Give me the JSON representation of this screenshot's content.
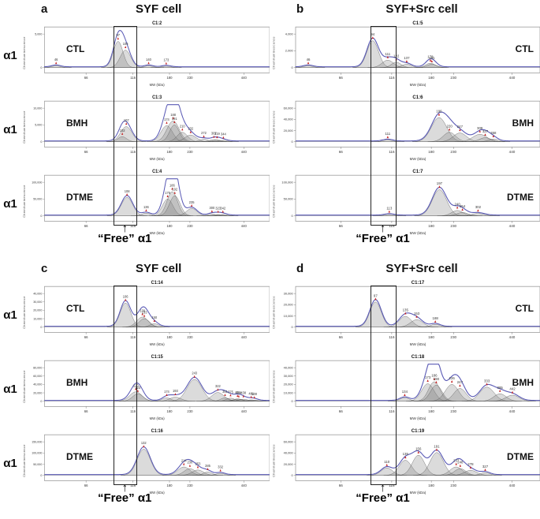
{
  "chart_data": {
    "type": "area",
    "x_axis": {
      "label": "MW (kDa)",
      "ticks": [
        66,
        116,
        180,
        230,
        440
      ],
      "scale": "log",
      "range": [
        40,
        600
      ]
    },
    "y_axis": {
      "label": "Chemiluminescence"
    },
    "free_annotation": "“Free” α1",
    "highlight_box_kda": [
      92,
      120
    ],
    "colors": {
      "trace": "#5a5ab5",
      "peak_fill": "rgba(125,125,125,0.28)",
      "peak_stroke": "#555555",
      "marker": "#c42222",
      "frame": "#9a9a9a",
      "box": "#222222"
    },
    "panels": [
      {
        "letter": "a",
        "cell": "SYF cell",
        "antibody": "α1",
        "side": "left",
        "rows": [
          {
            "condition": "CTL",
            "run": "C1:2",
            "y_ticks": [
              0,
              5000
            ],
            "peaks": [
              {
                "mw": 46,
                "rel": 0.05
              },
              {
                "mw": 97,
                "rel": 0.78,
                "w": 1.1
              },
              {
                "mw": 106,
                "rel": 0.52,
                "w": 1.2
              },
              {
                "mw": 140,
                "rel": 0.05
              },
              {
                "mw": 173,
                "rel": 0.04
              }
            ]
          },
          {
            "condition": "BMH",
            "run": "C1:3",
            "y_ticks": [
              0,
              5000,
              10000
            ],
            "peaks": [
              {
                "mw": 102,
                "rel": 0.15
              },
              {
                "mw": 107,
                "rel": 0.45,
                "w": 1.3
              },
              {
                "mw": 174,
                "rel": 0.48,
                "w": 1.3
              },
              {
                "mw": 188,
                "rel": 0.62,
                "w": 1.4
              },
              {
                "mw": 191,
                "rel": 0.5,
                "w": 1.1
              },
              {
                "mw": 210,
                "rel": 0.28,
                "w": 1.2
              },
              {
                "mw": 232,
                "rel": 0.2,
                "w": 1.3
              },
              {
                "mw": 272,
                "rel": 0.07
              },
              {
                "mw": 307,
                "rel": 0.06
              },
              {
                "mw": 319,
                "rel": 0.05
              },
              {
                "mw": 344,
                "rel": 0.04
              }
            ]
          },
          {
            "condition": "DTME",
            "run": "C1:4",
            "y_ticks": [
              0,
              50000,
              100000
            ],
            "peaks": [
              {
                "mw": 108,
                "rel": 0.55,
                "w": 1.3
              },
              {
                "mw": 136,
                "rel": 0.08
              },
              {
                "mw": 176,
                "rel": 0.5,
                "w": 1.2
              },
              {
                "mw": 186,
                "rel": 0.72,
                "w": 1.2
              },
              {
                "mw": 192,
                "rel": 0.6,
                "w": 1.2
              },
              {
                "mw": 235,
                "rel": 0.22,
                "w": 1.2
              },
              {
                "mw": 300,
                "rel": 0.05
              },
              {
                "mw": 323,
                "rel": 0.04
              },
              {
                "mw": 342,
                "rel": 0.04
              }
            ]
          }
        ]
      },
      {
        "letter": "b",
        "cell": "SYF+Src cell",
        "antibody": "α1",
        "side": "right",
        "rows": [
          {
            "condition": "CTL",
            "run": "C1:5",
            "y_ticks": [
              0,
              2000,
              4000
            ],
            "peaks": [
              {
                "mw": 46,
                "rel": 0.05
              },
              {
                "mw": 94,
                "rel": 0.8,
                "w": 1.2
              },
              {
                "mw": 111,
                "rel": 0.22,
                "w": 1.2
              },
              {
                "mw": 122,
                "rel": 0.16
              },
              {
                "mw": 137,
                "rel": 0.1
              },
              {
                "mw": 178,
                "rel": 0.13
              },
              {
                "mw": 181,
                "rel": 0.1
              }
            ]
          },
          {
            "condition": "BMH",
            "run": "C1:6",
            "y_ticks": [
              0,
              20000,
              40000,
              60000
            ],
            "peaks": [
              {
                "mw": 111,
                "rel": 0.05
              },
              {
                "mw": 196,
                "rel": 0.72,
                "w": 1.6
              },
              {
                "mw": 220,
                "rel": 0.28,
                "w": 1.3
              },
              {
                "mw": 247,
                "rel": 0.26,
                "w": 1.4
              },
              {
                "mw": 308,
                "rel": 0.22,
                "w": 1.5
              },
              {
                "mw": 327,
                "rel": 0.12,
                "w": 1.2
              },
              {
                "mw": 358,
                "rel": 0.08
              }
            ]
          },
          {
            "condition": "DTME",
            "run": "C1:7",
            "y_ticks": [
              0,
              50000,
              100000
            ],
            "peaks": [
              {
                "mw": 113,
                "rel": 0.04
              },
              {
                "mw": 197,
                "rel": 0.78,
                "w": 1.5
              },
              {
                "mw": 240,
                "rel": 0.16,
                "w": 1.2
              },
              {
                "mw": 254,
                "rel": 0.1,
                "w": 1.2
              },
              {
                "mw": 302,
                "rel": 0.07,
                "w": 1.3
              }
            ]
          }
        ]
      },
      {
        "letter": "c",
        "cell": "SYF cell",
        "antibody": "α1",
        "side": "left",
        "rows": [
          {
            "condition": "CTL",
            "run": "C1:14",
            "y_ticks": [
              0,
              10000,
              20000,
              30000,
              40000
            ],
            "peaks": [
              {
                "mw": 106,
                "rel": 0.72,
                "w": 1.2
              },
              {
                "mw": 130,
                "rel": 0.3,
                "w": 1.3
              },
              {
                "mw": 133,
                "rel": 0.25,
                "w": 1.2
              },
              {
                "mw": 150,
                "rel": 0.1
              }
            ]
          },
          {
            "condition": "BMH",
            "run": "C1:15",
            "y_ticks": [
              0,
              20000,
              40000,
              60000,
              80000
            ],
            "peaks": [
              {
                "mw": 120,
                "rel": 0.28,
                "w": 1.4
              },
              {
                "mw": 123,
                "rel": 0.22,
                "w": 1.2
              },
              {
                "mw": 174,
                "rel": 0.1
              },
              {
                "mw": 193,
                "rel": 0.12,
                "w": 1.3
              },
              {
                "mw": 243,
                "rel": 0.65,
                "w": 1.7
              },
              {
                "mw": 322,
                "rel": 0.26,
                "w": 1.4
              },
              {
                "mw": 351,
                "rel": 0.1
              },
              {
                "mw": 375,
                "rel": 0.09
              },
              {
                "mw": 408,
                "rel": 0.07
              },
              {
                "mw": 414,
                "rel": 0.06
              },
              {
                "mw": 438,
                "rel": 0.06
              },
              {
                "mw": 481,
                "rel": 0.04
              },
              {
                "mw": 500,
                "rel": 0.03
              }
            ]
          },
          {
            "condition": "DTME",
            "run": "C1:16",
            "y_ticks": [
              0,
              50000,
              100000,
              150000
            ],
            "peaks": [
              {
                "mw": 132,
                "rel": 0.78,
                "w": 1.5
              },
              {
                "mw": 214,
                "rel": 0.25,
                "w": 1.4
              },
              {
                "mw": 230,
                "rel": 0.2,
                "w": 1.3
              },
              {
                "mw": 253,
                "rel": 0.16,
                "w": 1.3
              },
              {
                "mw": 285,
                "rel": 0.1
              },
              {
                "mw": 332,
                "rel": 0.06
              }
            ]
          }
        ]
      },
      {
        "letter": "d",
        "cell": "SYF+Src cell",
        "antibody": "α1",
        "side": "right",
        "rows": [
          {
            "condition": "CTL",
            "run": "C1:17",
            "y_ticks": [
              0,
              10000,
              20000,
              30000
            ],
            "peaks": [
              {
                "mw": 97,
                "rel": 0.75,
                "w": 1.2
              },
              {
                "mw": 135,
                "rel": 0.32,
                "w": 1.3
              },
              {
                "mw": 153,
                "rel": 0.22,
                "w": 1.3
              },
              {
                "mw": 188,
                "rel": 0.08
              }
            ]
          },
          {
            "condition": "BMH",
            "run": "C1:18",
            "y_ticks": [
              0,
              10000,
              20000,
              30000,
              40000
            ],
            "peaks": [
              {
                "mw": 134,
                "rel": 0.1
              },
              {
                "mw": 173,
                "rel": 0.52,
                "w": 1.3
              },
              {
                "mw": 186,
                "rel": 0.58,
                "w": 1.2
              },
              {
                "mw": 190,
                "rel": 0.48,
                "w": 1.2
              },
              {
                "mw": 226,
                "rel": 0.5,
                "w": 1.4
              },
              {
                "mw": 247,
                "rel": 0.38,
                "w": 1.3
              },
              {
                "mw": 333,
                "rel": 0.42,
                "w": 1.5
              },
              {
                "mw": 385,
                "rel": 0.22,
                "w": 1.3
              },
              {
                "mw": 442,
                "rel": 0.18,
                "w": 1.4
              }
            ]
          },
          {
            "condition": "DTME",
            "run": "C1:19",
            "y_ticks": [
              0,
              20000,
              40000,
              60000
            ],
            "peaks": [
              {
                "mw": 110,
                "rel": 0.22,
                "w": 1.2
              },
              {
                "mw": 135,
                "rel": 0.45,
                "w": 1.3
              },
              {
                "mw": 156,
                "rel": 0.6,
                "w": 1.3
              },
              {
                "mw": 191,
                "rel": 0.68,
                "w": 1.4
              },
              {
                "mw": 237,
                "rel": 0.25,
                "w": 1.3
              },
              {
                "mw": 248,
                "rel": 0.2,
                "w": 1.2
              },
              {
                "mw": 278,
                "rel": 0.15,
                "w": 1.3
              },
              {
                "mw": 327,
                "rel": 0.08
              }
            ]
          }
        ]
      }
    ]
  }
}
